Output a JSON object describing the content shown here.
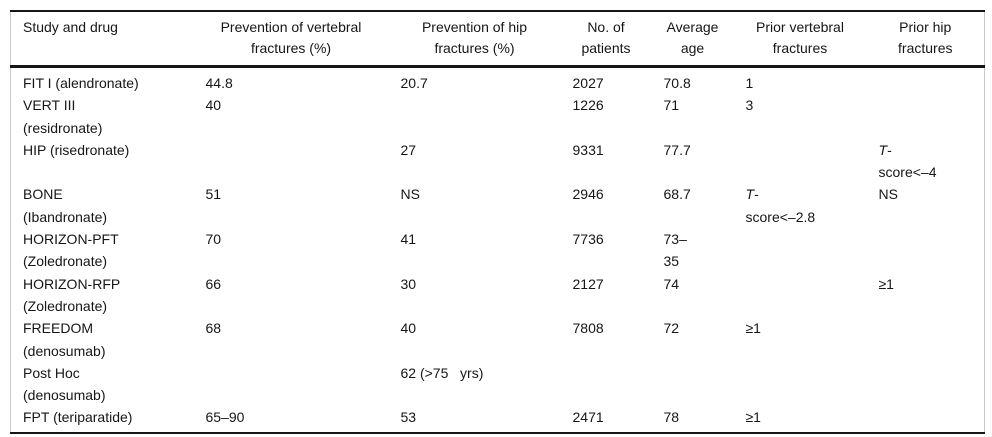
{
  "page": {
    "background": "#ffffff",
    "text_color": "#161616",
    "rule_color": "#161616",
    "side_rule_color": "#c9c9c9"
  },
  "table": {
    "columns": [
      {
        "id": "study",
        "label": "Study and drug"
      },
      {
        "id": "prev-vertebral",
        "label": "Prevention of vertebral\nfractures (%)"
      },
      {
        "id": "prev-hip",
        "label": "Prevention of hip\nfractures (%)"
      },
      {
        "id": "patients",
        "label": "No. of\npatients"
      },
      {
        "id": "avg-age",
        "label": "Average\nage"
      },
      {
        "id": "prior-vertebral",
        "label": "Prior vertebral\nfractures"
      },
      {
        "id": "prior-hip",
        "label": "Prior hip\nfractures"
      }
    ],
    "rows": [
      [
        "FIT I (alendronate)",
        "44.8",
        "20.7",
        "2027",
        "70.8",
        "1",
        ""
      ],
      [
        "VERT III\n(residronate)",
        "40",
        "",
        "1226",
        "71",
        "3",
        ""
      ],
      [
        "HIP (risedronate)",
        "",
        "27",
        "9331",
        "77.7",
        "",
        {
          "italic": "T",
          "text": "-\nscore<–4"
        }
      ],
      [
        "BONE\n(Ibandronate)",
        "51",
        "NS",
        "2946",
        "68.7",
        {
          "italic": "T",
          "text": "-\nscore<–2.8"
        },
        "NS"
      ],
      [
        "HORIZON-PFT\n(Zoledronate)",
        "70",
        "41",
        "7736",
        "73–\n35",
        "",
        ""
      ],
      [
        "HORIZON-RFP\n(Zoledronate)",
        "66",
        "30",
        "2127",
        "74",
        "",
        "≥1"
      ],
      [
        "FREEDOM\n(denosumab)",
        "68",
        "40",
        "7808",
        "72",
        "≥1",
        ""
      ],
      [
        "Post Hoc\n(denosumab)",
        "",
        "62 (>75   yrs)",
        "",
        "",
        "",
        ""
      ],
      [
        "FPT (teriparatide)",
        "65–90",
        "53",
        "2471",
        "78",
        "≥1",
        ""
      ]
    ]
  }
}
